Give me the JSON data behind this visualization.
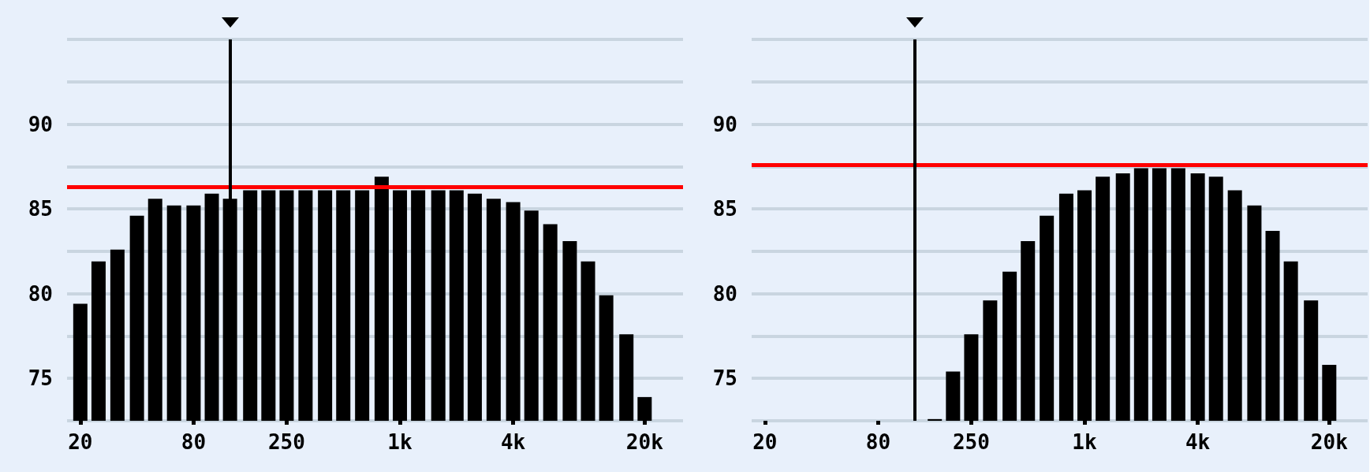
{
  "chart_data": [
    {
      "type": "bar",
      "log": "x",
      "grid": "y",
      "color": "#000000",
      "x": [
        20,
        25,
        31.5,
        40,
        50,
        63,
        80,
        100,
        125,
        160,
        200,
        250,
        315,
        400,
        500,
        630,
        800,
        1000,
        1250,
        1600,
        2000,
        2500,
        3150,
        4000,
        5000,
        6300,
        8000,
        10000,
        12500,
        16000,
        20000
      ],
      "values": [
        79.4,
        81.9,
        82.6,
        84.6,
        85.6,
        85.2,
        85.2,
        85.9,
        85.6,
        86.1,
        86.1,
        86.1,
        86.1,
        86.1,
        86.1,
        86.1,
        86.9,
        86.1,
        86.1,
        86.1,
        86.1,
        85.9,
        85.6,
        85.4,
        84.9,
        84.1,
        83.1,
        81.9,
        79.9,
        77.6,
        73.9
      ],
      "xlim": [
        17,
        32000
      ],
      "xticks": [
        20,
        80,
        250,
        {
          "value": 1000,
          "label": "1k"
        },
        {
          "value": 4000,
          "label": "4k"
        },
        {
          "value": 20000,
          "label": "20k"
        }
      ],
      "ylim": [
        72.5,
        95
      ],
      "yticks": [
        {
          "value": 72.5,
          "label": null
        },
        75,
        {
          "value": 77.5,
          "label": null
        },
        80,
        {
          "value": 82.5,
          "label": null
        },
        85,
        {
          "value": 87.5,
          "label": null
        },
        90,
        {
          "value": 92.5,
          "label": null
        },
        {
          "value": 95,
          "label": null
        }
      ],
      "ref_lines": [
        {
          "axis": "y",
          "value": 86.3,
          "color": "#ff0000"
        },
        {
          "axis": "x",
          "value": 125,
          "color": "#000000"
        }
      ]
    },
    {
      "type": "bar",
      "log": "x",
      "grid": "y",
      "color": "#000000",
      "x": [
        160,
        200,
        250,
        315,
        400,
        500,
        630,
        800,
        1000,
        1250,
        1600,
        2000,
        2500,
        3150,
        4000,
        5000,
        6300,
        8000,
        10000,
        12500,
        16000,
        20000
      ],
      "values": [
        72.6,
        75.4,
        77.6,
        79.6,
        81.3,
        83.1,
        84.6,
        85.9,
        86.1,
        86.9,
        87.1,
        87.4,
        87.4,
        87.4,
        87.1,
        86.9,
        86.1,
        85.2,
        83.7,
        81.9,
        79.6,
        75.8
      ],
      "xlim": [
        17,
        32000
      ],
      "xticks": [
        20,
        80,
        250,
        {
          "value": 1000,
          "label": "1k"
        },
        {
          "value": 4000,
          "label": "4k"
        },
        {
          "value": 20000,
          "label": "20k"
        }
      ],
      "ylim": [
        72.5,
        95
      ],
      "yticks": [
        {
          "value": 72.5,
          "label": null
        },
        75,
        {
          "value": 77.5,
          "label": null
        },
        80,
        {
          "value": 82.5,
          "label": null
        },
        85,
        {
          "value": 87.5,
          "label": null
        },
        90,
        {
          "value": 92.5,
          "label": null
        },
        {
          "value": 95,
          "label": null
        }
      ],
      "ref_lines": [
        {
          "axis": "y",
          "value": 87.6,
          "color": "#ff0000"
        },
        {
          "axis": "x",
          "value": 125,
          "color": "#000000"
        }
      ]
    }
  ]
}
